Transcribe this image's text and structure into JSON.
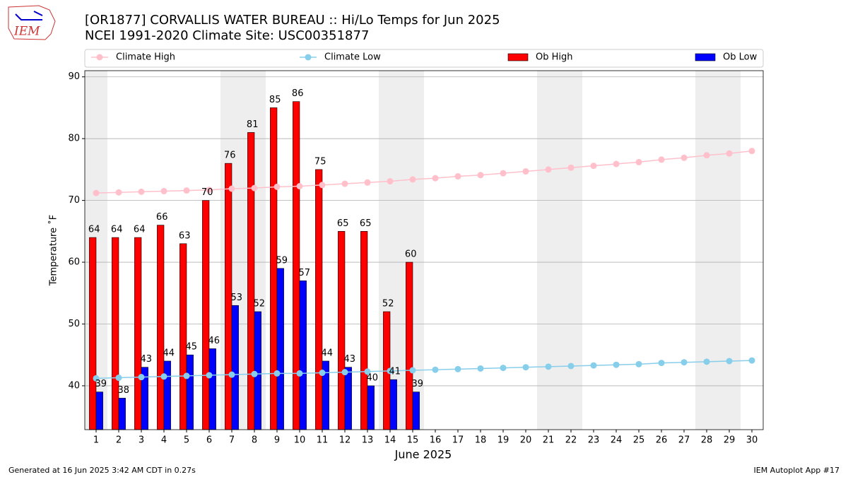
{
  "logo": "IEM",
  "footer_left": "Generated at 16 Jun 2025 3:42 AM CDT in 0.27s",
  "footer_right": "IEM Autoplot App #17",
  "chart_data": {
    "type": "bar",
    "title": "[OR1877] CORVALLIS WATER BUREAU :: Hi/Lo Temps for Jun 2025",
    "subtitle": "NCEI 1991-2020 Climate Site: USC00351877",
    "x_label": "June 2025",
    "y_label": "Temperature ˚F",
    "x": [
      1,
      2,
      3,
      4,
      5,
      6,
      7,
      8,
      9,
      10,
      11,
      12,
      13,
      14,
      15,
      16,
      17,
      18,
      19,
      20,
      21,
      22,
      23,
      24,
      25,
      26,
      27,
      28,
      29,
      30
    ],
    "xlim": [
      0.5,
      30.5
    ],
    "xticks": [
      1,
      2,
      3,
      4,
      5,
      6,
      7,
      8,
      9,
      10,
      11,
      12,
      13,
      14,
      15,
      16,
      17,
      18,
      19,
      20,
      21,
      22,
      23,
      24,
      25,
      26,
      27,
      28,
      29,
      30
    ],
    "ylim": [
      32.9,
      91.0
    ],
    "yticks": [
      40,
      50,
      60,
      70,
      80,
      90
    ],
    "grid": true,
    "shaded_days": [
      1,
      7,
      8,
      14,
      15,
      21,
      22,
      28,
      29
    ],
    "shade_color": "#eeeeee",
    "legend": "top",
    "series": [
      {
        "name": "Climate High",
        "type": "line",
        "color": "#ffc0cb",
        "values": [
          71.2,
          71.3,
          71.4,
          71.5,
          71.6,
          71.7,
          71.9,
          72.0,
          72.2,
          72.3,
          72.5,
          72.7,
          72.9,
          73.1,
          73.4,
          73.6,
          73.9,
          74.1,
          74.4,
          74.7,
          75.0,
          75.3,
          75.6,
          75.9,
          76.2,
          76.6,
          76.9,
          77.3,
          77.6,
          78.0
        ]
      },
      {
        "name": "Climate Low",
        "type": "line",
        "color": "#87ceeb",
        "values": [
          41.2,
          41.3,
          41.4,
          41.5,
          41.6,
          41.7,
          41.8,
          41.9,
          42.0,
          42.0,
          42.1,
          42.2,
          42.3,
          42.4,
          42.5,
          42.6,
          42.7,
          42.8,
          42.9,
          43.0,
          43.1,
          43.2,
          43.3,
          43.4,
          43.5,
          43.7,
          43.8,
          43.9,
          44.0,
          44.1
        ]
      },
      {
        "name": "Ob High",
        "type": "bar",
        "color": "#ff0000",
        "values": [
          64,
          64,
          64,
          66,
          63,
          70,
          76,
          81,
          85,
          86,
          75,
          65,
          65,
          52,
          60,
          null,
          null,
          null,
          null,
          null,
          null,
          null,
          null,
          null,
          null,
          null,
          null,
          null,
          null,
          null
        ]
      },
      {
        "name": "Ob Low",
        "type": "bar",
        "color": "#0000ff",
        "values": [
          39,
          38,
          43,
          44,
          45,
          46,
          53,
          52,
          59,
          57,
          44,
          43,
          40,
          41,
          39,
          null,
          null,
          null,
          null,
          null,
          null,
          null,
          null,
          null,
          null,
          null,
          null,
          null,
          null,
          null
        ]
      }
    ]
  }
}
